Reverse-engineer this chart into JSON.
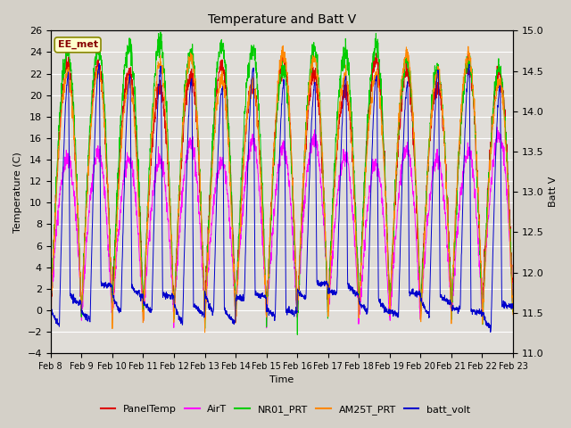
{
  "title": "Temperature and Batt V",
  "xlabel": "Time",
  "ylabel_left": "Temperature (C)",
  "ylabel_right": "Batt V",
  "annotation": "EE_met",
  "ylim_left": [
    -4,
    26
  ],
  "ylim_right": [
    11.0,
    15.0
  ],
  "yticks_left": [
    -4,
    -2,
    0,
    2,
    4,
    6,
    8,
    10,
    12,
    14,
    16,
    18,
    20,
    22,
    24,
    26
  ],
  "yticks_right": [
    11.0,
    11.5,
    12.0,
    12.5,
    13.0,
    13.5,
    14.0,
    14.5,
    15.0
  ],
  "xtick_labels": [
    "Feb 8",
    "Feb 9",
    "Feb 10",
    "Feb 11",
    "Feb 12",
    "Feb 13",
    "Feb 14",
    "Feb 15",
    "Feb 16",
    "Feb 17",
    "Feb 18",
    "Feb 19",
    "Feb 20",
    "Feb 21",
    "Feb 22",
    "Feb 23"
  ],
  "colors": {
    "PanelTemp": "#dd0000",
    "AirT": "#ff00ff",
    "NR01_PRT": "#00cc00",
    "AM25T_PRT": "#ff8800",
    "batt_volt": "#0000cc"
  },
  "background_color": "#d4d0c8",
  "plot_bg_color": "#e0ddd8",
  "n_days": 15,
  "samples_per_day": 144,
  "figsize": [
    6.4,
    4.8
  ],
  "dpi": 100
}
